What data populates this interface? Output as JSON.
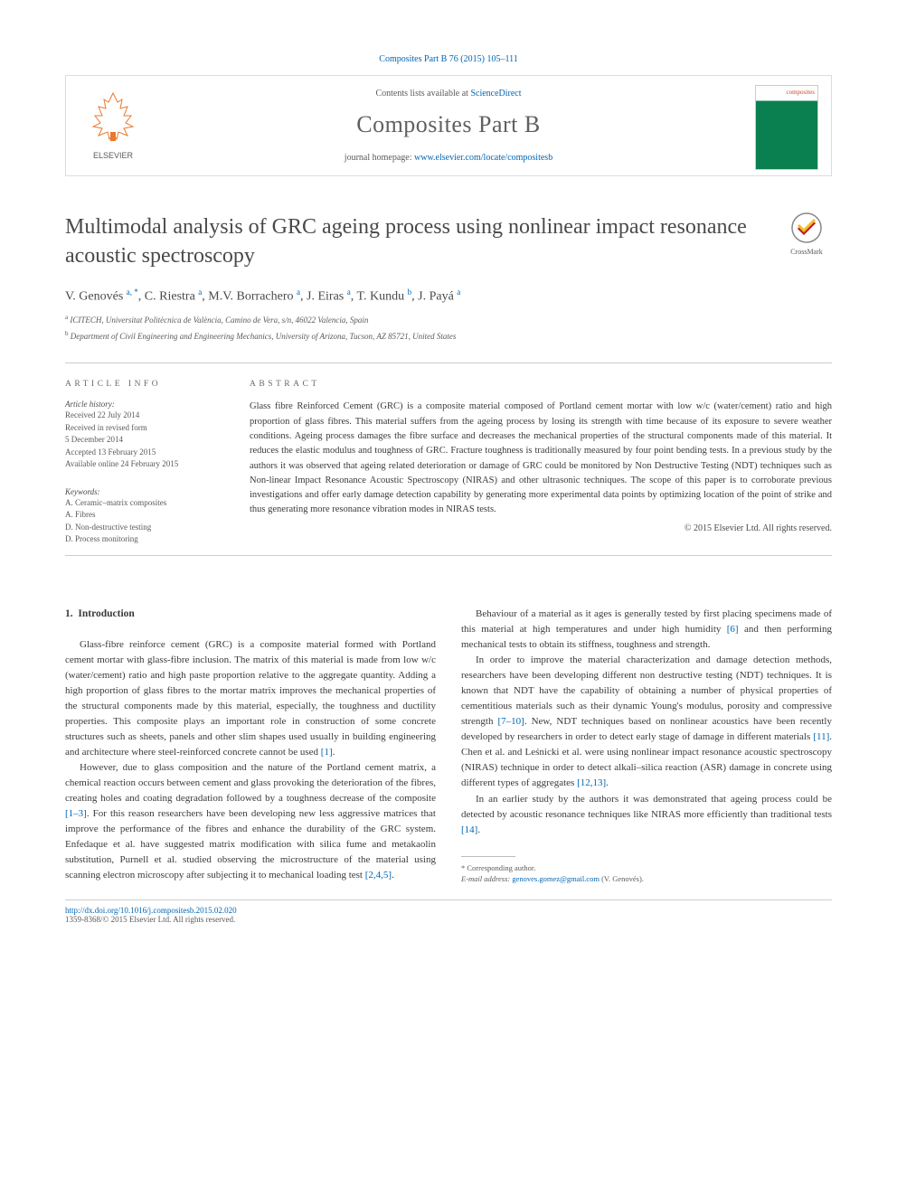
{
  "citation": "Composites Part B 76 (2015) 105–111",
  "header": {
    "contents_prefix": "Contents lists available at ",
    "contents_link": "ScienceDirect",
    "journal_name": "Composites Part B",
    "homepage_prefix": "journal homepage: ",
    "homepage_url": "www.elsevier.com/locate/compositesb",
    "publisher": "ELSEVIER",
    "cover_label": "composites"
  },
  "crossmark_label": "CrossMark",
  "title": "Multimodal analysis of GRC ageing process using nonlinear impact resonance acoustic spectroscopy",
  "authors": [
    {
      "name": "V. Genovés ",
      "marks": "a, *"
    },
    {
      "name": ", C. Riestra ",
      "marks": "a"
    },
    {
      "name": ", M.V. Borrachero ",
      "marks": "a"
    },
    {
      "name": ", J. Eiras ",
      "marks": "a"
    },
    {
      "name": ", T. Kundu ",
      "marks": "b"
    },
    {
      "name": ", J. Payá ",
      "marks": "a"
    }
  ],
  "affiliations": [
    {
      "mark": "a",
      "text": " ICITECH, Universitat Politècnica de València, Camino de Vera, s/n, 46022 Valencia, Spain"
    },
    {
      "mark": "b",
      "text": " Department of Civil Engineering and Engineering Mechanics, University of Arizona, Tucson, AZ 85721, United States"
    }
  ],
  "article_info": {
    "head": "ARTICLE INFO",
    "history_head": "Article history:",
    "history": [
      "Received 22 July 2014",
      "Received in revised form",
      "5 December 2014",
      "Accepted 13 February 2015",
      "Available online 24 February 2015"
    ],
    "keywords_head": "Keywords:",
    "keywords": [
      "A. Ceramic–matrix composites",
      "A. Fibres",
      "D. Non-destructive testing",
      "D. Process monitoring"
    ]
  },
  "abstract": {
    "head": "ABSTRACT",
    "text": "Glass fibre Reinforced Cement (GRC) is a composite material composed of Portland cement mortar with low w/c (water/cement) ratio and high proportion of glass fibres. This material suffers from the ageing process by losing its strength with time because of its exposure to severe weather conditions. Ageing process damages the fibre surface and decreases the mechanical properties of the structural components made of this material. It reduces the elastic modulus and toughness of GRC. Fracture toughness is traditionally measured by four point bending tests. In a previous study by the authors it was observed that ageing related deterioration or damage of GRC could be monitored by Non Destructive Testing (NDT) techniques such as Non-linear Impact Resonance Acoustic Spectroscopy (NIRAS) and other ultrasonic techniques. The scope of this paper is to corroborate previous investigations and offer early damage detection capability by generating more experimental data points by optimizing location of the point of strike and thus generating more resonance vibration modes in NIRAS tests.",
    "copyright": "© 2015 Elsevier Ltd. All rights reserved."
  },
  "body": {
    "section_number": "1.",
    "section_title": "Introduction",
    "paragraphs": [
      "Glass-fibre reinforce cement (GRC) is a composite material formed with Portland cement mortar with glass-fibre inclusion. The matrix of this material is made from low w/c (water/cement) ratio and high paste proportion relative to the aggregate quantity. Adding a high proportion of glass fibres to the mortar matrix improves the mechanical properties of the structural components made by this material, especially, the toughness and ductility properties. This composite plays an important role in construction of some concrete structures such as sheets, panels and other slim shapes used usually in building engineering and architecture where steel-reinforced concrete cannot be used [1].",
      "However, due to glass composition and the nature of the Portland cement matrix, a chemical reaction occurs between cement and glass provoking the deterioration of the fibres, creating holes and coating degradation followed by a toughness decrease of the composite [1–3]. For this reason researchers have been developing new less aggressive matrices that improve the performance of the fibres and enhance the durability of the GRC system. Enfedaque et al. have suggested matrix modification with silica fume and metakaolin substitution, Purnell et al. studied observing the microstructure of the material using scanning electron microscopy after subjecting it to mechanical loading test [2,4,5].",
      "Behaviour of a material as it ages is generally tested by first placing specimens made of this material at high temperatures and under high humidity [6] and then performing mechanical tests to obtain its stiffness, toughness and strength.",
      "In order to improve the material characterization and damage detection methods, researchers have been developing different non destructive testing (NDT) techniques. It is known that NDT have the capability of obtaining a number of physical properties of cementitious materials such as their dynamic Young's modulus, porosity and compressive strength [7–10]. New, NDT techniques based on nonlinear acoustics have been recently developed by researchers in order to detect early stage of damage in different materials [11]. Chen et al. and Leśnicki et al. were using nonlinear impact resonance acoustic spectroscopy (NIRAS) technique in order to detect alkali–silica reaction (ASR) damage in concrete using different types of aggregates [12,13].",
      "In an earlier study by the authors it was demonstrated that ageing process could be detected by acoustic resonance techniques like NIRAS more efficiently than traditional tests [14]."
    ],
    "ref_map": {
      "0": "[1]",
      "1a": "[1–3]",
      "1b": "[2,4,5]",
      "2": "[6]",
      "3a": "[7–10]",
      "3b": "[11]",
      "3c": "[12,13]",
      "4": "[14]"
    }
  },
  "footnote": {
    "corr": "* Corresponding author.",
    "email_label": "E-mail address: ",
    "email": "genoves.gomez@gmail.com",
    "email_suffix": " (V. Genovés)."
  },
  "bottom": {
    "doi": "http://dx.doi.org/10.1016/j.compositesb.2015.02.020",
    "issn": "1359-8368/© 2015 Elsevier Ltd. All rights reserved."
  }
}
